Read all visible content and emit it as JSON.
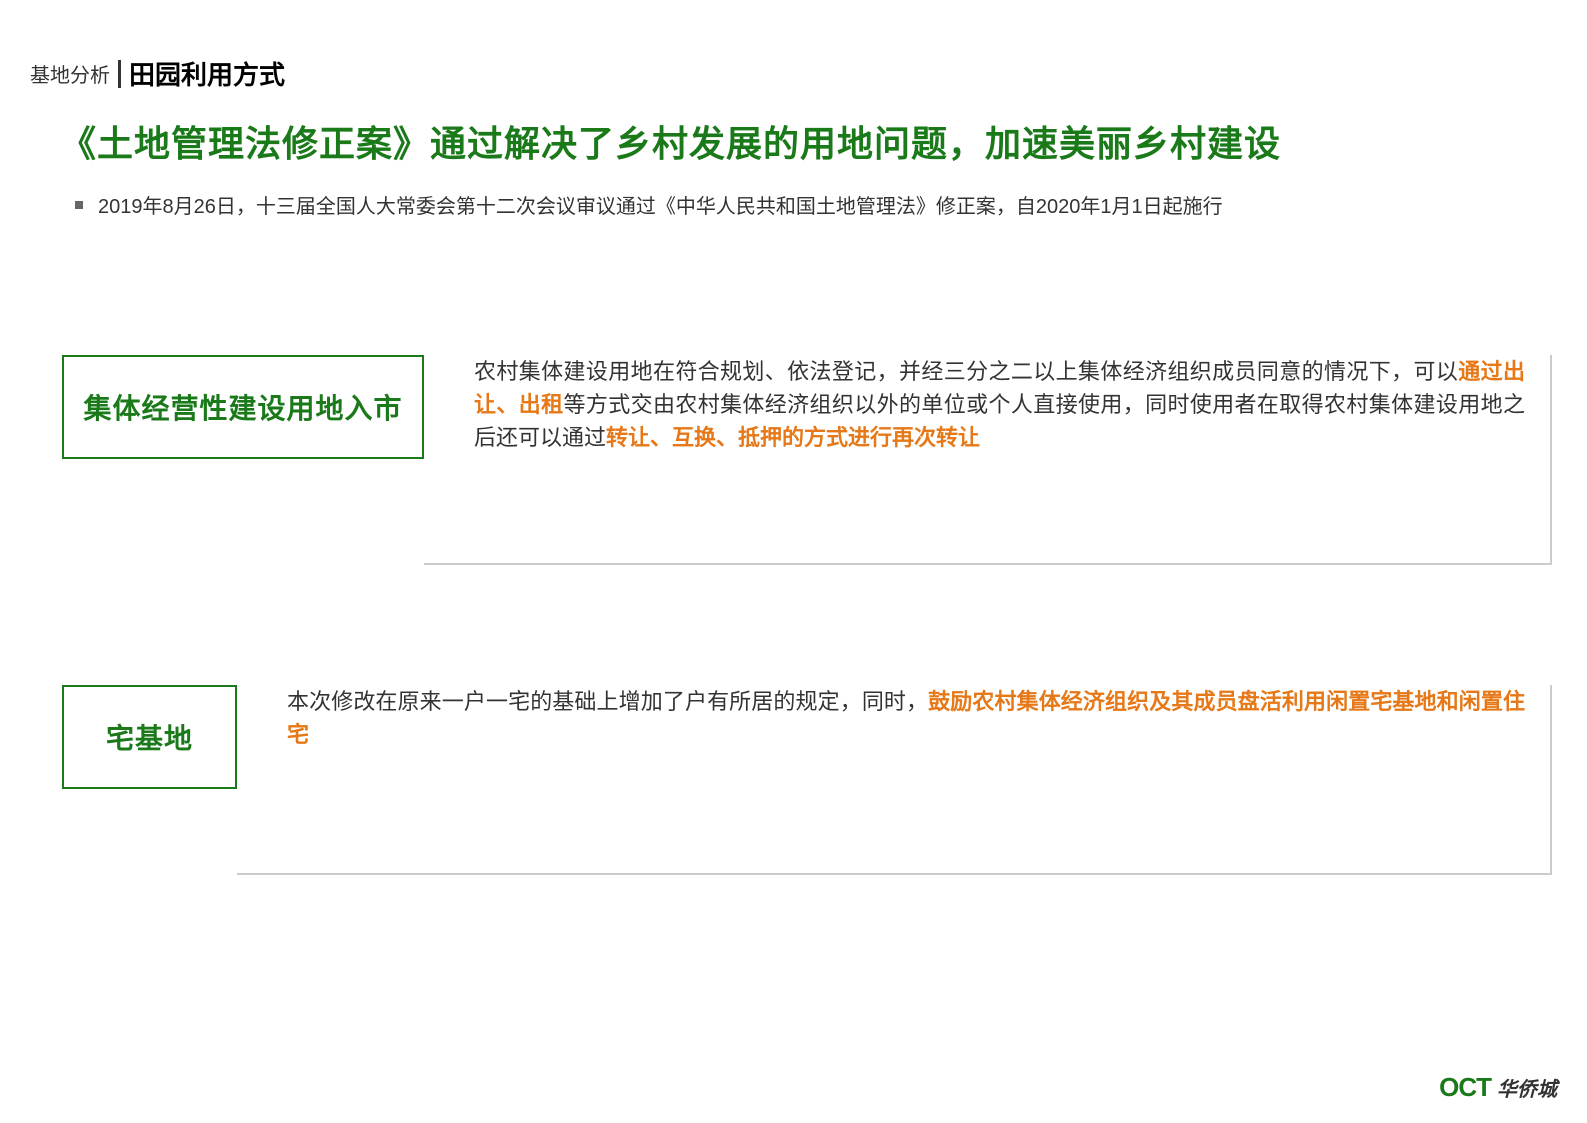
{
  "header": {
    "prefix": "基地分析",
    "title": "田园利用方式"
  },
  "main_heading": "《土地管理法修正案》通过解决了乡村发展的用地问题，加速美丽乡村建设",
  "bullet": "2019年8月26日，十三届全国人大常委会第十二次会议审议通过《中华人民共和国土地管理法》修正案，自2020年1月1日起施行",
  "sections": [
    {
      "label": "集体经营性建设用地入市",
      "desc_parts": [
        {
          "text": "农村集体建设用地在符合规划、依法登记，并经三分之二以上集体经济组织成员同意的情况下，可以",
          "highlight": false
        },
        {
          "text": "通过出让、出租",
          "highlight": true
        },
        {
          "text": "等方式交由农村集体经济组织以外的单位或个人直接使用，同时使用者在取得农村集体建设用地之后还可以通过",
          "highlight": false
        },
        {
          "text": "转让、互换、抵押的方式进行再次转让",
          "highlight": true
        }
      ]
    },
    {
      "label": "宅基地",
      "desc_parts": [
        {
          "text": "本次修改在原来一户一宅的基础上增加了户有所居的规定，同时，",
          "highlight": false
        },
        {
          "text": "鼓励农村集体经济组织及其成员盘活利用闲置宅基地和闲置住宅",
          "highlight": true
        }
      ]
    }
  ],
  "logo": {
    "en": "OCT",
    "cn": "华侨城"
  },
  "colors": {
    "brand_green": "#1a7a1a",
    "highlight_orange": "#e67817",
    "text_dark": "#333333",
    "border_gray": "#cccccc"
  }
}
